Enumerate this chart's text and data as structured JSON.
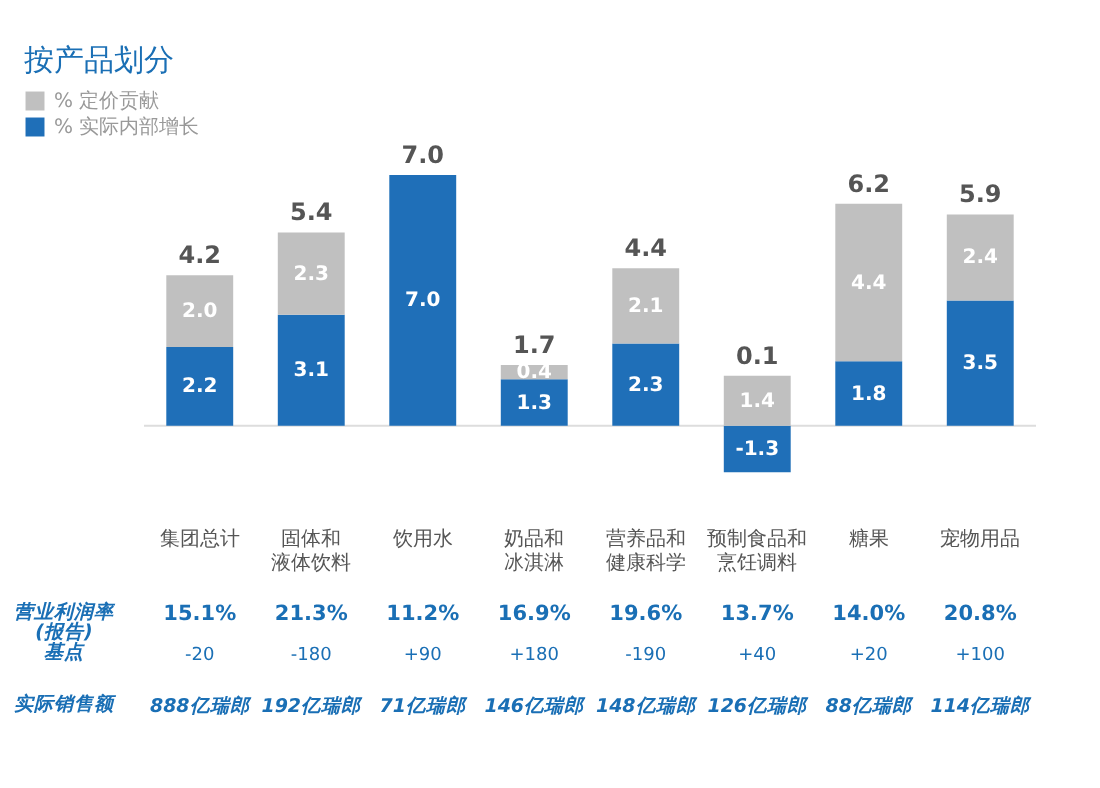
{
  "chart_data": {
    "type": "bar",
    "title": "按产品划分",
    "stacked": true,
    "legend": "top left",
    "grid": false,
    "tick_labels": "x",
    "categories": [
      "集团总计",
      "固体和液体饮料",
      "饮用水",
      "奶品和冰淇淋",
      "营养品和健康科学",
      "预制食品和烹饪调料",
      "糖果",
      "宠物用品"
    ],
    "series": [
      {
        "name": "% 实际内部增长",
        "color": "#1f6fb8",
        "values": [
          2.2,
          3.1,
          7.0,
          1.3,
          2.3,
          -1.3,
          1.8,
          3.5
        ],
        "value_labels": [
          "2.2",
          "3.1",
          "7.0",
          "1.3",
          "2.3",
          "-1.3",
          "1.8",
          "3.5"
        ]
      },
      {
        "name": "% 定价贡献",
        "color": "#c0c0c0",
        "values": [
          2.0,
          2.3,
          null,
          0.4,
          2.1,
          1.4,
          4.4,
          2.4
        ],
        "value_labels": [
          "2.0",
          "2.3",
          null,
          "0.4",
          "2.1",
          "1.4",
          "4.4",
          "2.4"
        ]
      }
    ],
    "totals": [
      "4.2",
      "5.4",
      "7.0",
      "1.7",
      "4.4",
      "0.1",
      "6.2",
      "5.9"
    ],
    "ref_lines": [
      {
        "axis": "y",
        "value": 0,
        "color": "#dddddd"
      }
    ],
    "annotations": [
      "营业利润率\n(报告)",
      "15.1%",
      "21.3%",
      "11.2%",
      "16.9%",
      "19.6%",
      "13.7%",
      "14.0%",
      "20.8%",
      "基点",
      "-20",
      "-180",
      "+90",
      "+180",
      "-190",
      "+40",
      "+20",
      "+100",
      "实际销售额",
      "888亿瑞郎",
      "192亿瑞郎",
      "71亿瑞郎",
      "146亿瑞郎",
      "148亿瑞郎",
      "126亿瑞郎",
      "88亿瑞郎",
      "114亿瑞郎"
    ]
  }
}
